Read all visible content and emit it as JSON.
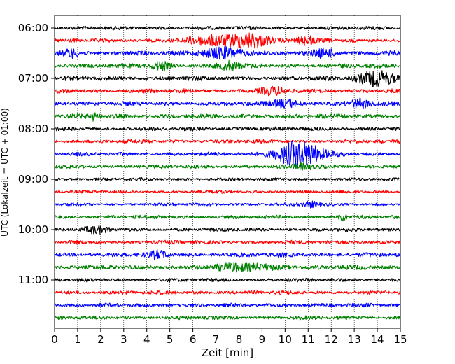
{
  "chart_data": {
    "type": "line",
    "title": "",
    "xlabel": "Zeit  [min]",
    "ylabel": "UTC (Lokalzeit = UTC + 01:00)",
    "xlim": [
      0,
      15
    ],
    "x_ticks": [
      0,
      1,
      2,
      3,
      4,
      5,
      6,
      7,
      8,
      9,
      10,
      11,
      12,
      13,
      14,
      15
    ],
    "x_tick_labels": [
      "0",
      "1",
      "2",
      "3",
      "4",
      "5",
      "6",
      "7",
      "8",
      "9",
      "10",
      "11",
      "12",
      "13",
      "14",
      "15"
    ],
    "y_ticks": [
      "06:00",
      "07:00",
      "08:00",
      "09:00",
      "10:00",
      "11:00"
    ],
    "grid": "vertical dotted",
    "trace_interval_minutes": 15,
    "colors": [
      "#000000",
      "#ff0000",
      "#0000ff",
      "#008000"
    ],
    "traces": [
      {
        "start": "06:00",
        "color": "#000000",
        "base": 3,
        "events": []
      },
      {
        "start": "06:15",
        "color": "#ff0000",
        "base": 3,
        "events": [
          {
            "t": 7.0,
            "w": 1.2,
            "amp": 7
          },
          {
            "t": 8.6,
            "w": 0.8,
            "amp": 9
          },
          {
            "t": 10.9,
            "w": 0.4,
            "amp": 6
          }
        ]
      },
      {
        "start": "06:30",
        "color": "#0000ff",
        "base": 3.5,
        "events": [
          {
            "t": 0.7,
            "w": 0.3,
            "amp": 6
          },
          {
            "t": 7.3,
            "w": 0.9,
            "amp": 8
          },
          {
            "t": 11.7,
            "w": 0.5,
            "amp": 6
          }
        ]
      },
      {
        "start": "06:45",
        "color": "#008000",
        "base": 3.5,
        "events": [
          {
            "t": 4.6,
            "w": 0.4,
            "amp": 5
          },
          {
            "t": 7.6,
            "w": 0.4,
            "amp": 6
          }
        ]
      },
      {
        "start": "07:00",
        "color": "#000000",
        "base": 3.5,
        "events": [
          {
            "t": 14.0,
            "w": 0.8,
            "amp": 10
          }
        ]
      },
      {
        "start": "07:15",
        "color": "#ff0000",
        "base": 3.5,
        "events": [
          {
            "t": 9.5,
            "w": 0.6,
            "amp": 4
          }
        ]
      },
      {
        "start": "07:30",
        "color": "#0000ff",
        "base": 3.5,
        "events": [
          {
            "t": 10.0,
            "w": 0.6,
            "amp": 5
          },
          {
            "t": 13.3,
            "w": 0.4,
            "amp": 6
          }
        ]
      },
      {
        "start": "07:45",
        "color": "#008000",
        "base": 3.5,
        "events": [
          {
            "t": 1.7,
            "w": 0.2,
            "amp": 5
          }
        ]
      },
      {
        "start": "08:00",
        "color": "#000000",
        "base": 3,
        "events": []
      },
      {
        "start": "08:15",
        "color": "#ff0000",
        "base": 3,
        "events": []
      },
      {
        "start": "08:30",
        "color": "#0000ff",
        "base": 3,
        "events": [
          {
            "t": 10.6,
            "w": 1.0,
            "amp": 18
          }
        ]
      },
      {
        "start": "08:45",
        "color": "#008000",
        "base": 3,
        "events": [
          {
            "t": 10.8,
            "w": 0.4,
            "amp": 4
          }
        ]
      },
      {
        "start": "09:00",
        "color": "#000000",
        "base": 2.5,
        "events": []
      },
      {
        "start": "09:15",
        "color": "#ff0000",
        "base": 2.5,
        "events": []
      },
      {
        "start": "09:30",
        "color": "#0000ff",
        "base": 2.5,
        "events": [
          {
            "t": 11.1,
            "w": 0.3,
            "amp": 4
          }
        ]
      },
      {
        "start": "09:45",
        "color": "#008000",
        "base": 3,
        "events": [
          {
            "t": 12.5,
            "w": 0.15,
            "amp": 6
          }
        ]
      },
      {
        "start": "10:00",
        "color": "#000000",
        "base": 3,
        "events": [
          {
            "t": 1.8,
            "w": 0.5,
            "amp": 4
          }
        ]
      },
      {
        "start": "10:15",
        "color": "#ff0000",
        "base": 3,
        "events": []
      },
      {
        "start": "10:30",
        "color": "#0000ff",
        "base": 3.5,
        "events": [
          {
            "t": 4.5,
            "w": 0.4,
            "amp": 4
          }
        ]
      },
      {
        "start": "10:45",
        "color": "#008000",
        "base": 3.5,
        "events": [
          {
            "t": 8.3,
            "w": 1.5,
            "amp": 4
          }
        ]
      },
      {
        "start": "11:00",
        "color": "#000000",
        "base": 3,
        "events": []
      },
      {
        "start": "11:15",
        "color": "#ff0000",
        "base": 3,
        "events": []
      },
      {
        "start": "11:30",
        "color": "#0000ff",
        "base": 3,
        "events": []
      },
      {
        "start": "11:45",
        "color": "#008000",
        "base": 3,
        "events": []
      }
    ]
  }
}
